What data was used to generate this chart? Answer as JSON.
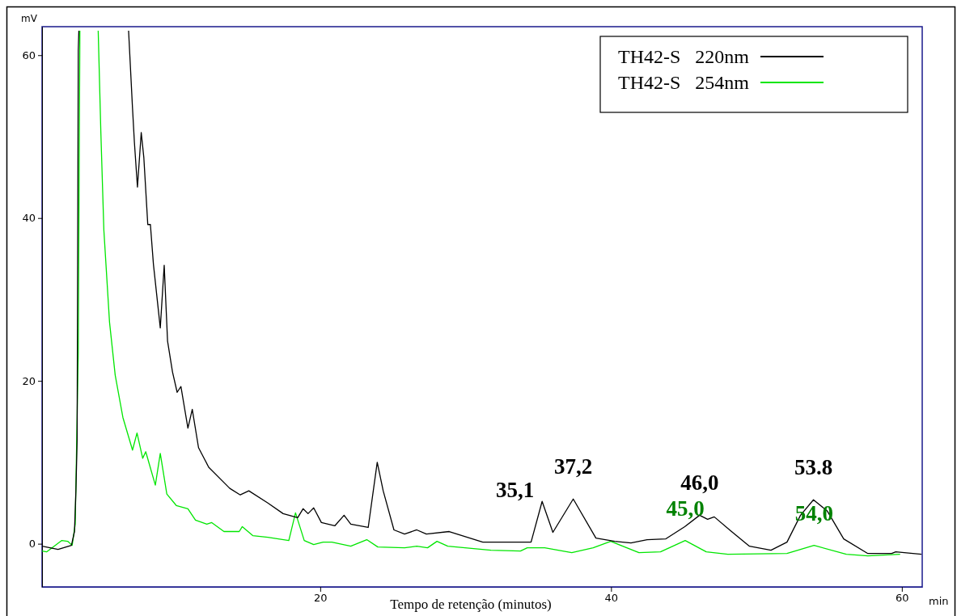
{
  "chart_data": {
    "type": "line",
    "xlabel": "Tempo de retenção (minutos)",
    "ylabel": "mV",
    "xlim": [
      0.87,
      61.4
    ],
    "ylim": [
      -5.3,
      63.5
    ],
    "xticks": [
      20,
      40,
      60
    ],
    "yticks": [
      0,
      20,
      40,
      60
    ],
    "grid": false,
    "legend": "top right",
    "marker": "none",
    "line_style": "solid",
    "series": [
      {
        "name": "TH42-S   220nm",
        "color": "#000000",
        "x": [
          0.87,
          1.97,
          2.89,
          3.1,
          3.2,
          3.28,
          3.36,
          3.4,
          null,
          6.82,
          7.09,
          7.22,
          7.43,
          7.69,
          7.87,
          8.14,
          8.32,
          8.53,
          9.0,
          9.27,
          9.5,
          9.84,
          10.16,
          10.42,
          10.9,
          11.2,
          11.63,
          12.33,
          13.78,
          14.5,
          15.09,
          16.4,
          17.45,
          18.45,
          18.82,
          19.16,
          19.55,
          20.08,
          21.0,
          21.64,
          22.1,
          23.3,
          23.92,
          24.33,
          25.07,
          25.8,
          26.64,
          27.3,
          28.87,
          31.18,
          34.5,
          35.26,
          36.0,
          37.4,
          38.96,
          40.25,
          41.37,
          42.48,
          43.77,
          45.07,
          46.09,
          46.64,
          47.1,
          48.22,
          49.52,
          51.0,
          52.1,
          53.03,
          53.92,
          54.88,
          56.0,
          57.66,
          59.3,
          59.58,
          61.35
        ],
        "values": [
          -0.3,
          -0.7,
          -0.2,
          1.5,
          6.6,
          12.7,
          60.6,
          63.0,
          null,
          63.0,
          53.5,
          49.3,
          43.8,
          50.5,
          47.4,
          39.2,
          39.2,
          34.3,
          26.5,
          34.2,
          24.9,
          21.1,
          18.6,
          19.3,
          14.2,
          16.5,
          11.8,
          9.4,
          6.8,
          6.0,
          6.5,
          5.0,
          3.7,
          3.2,
          4.3,
          3.7,
          4.4,
          2.6,
          2.2,
          3.5,
          2.4,
          2.0,
          10.0,
          6.5,
          1.7,
          1.2,
          1.7,
          1.2,
          1.5,
          0.2,
          0.2,
          5.2,
          1.4,
          5.5,
          0.7,
          0.3,
          0.1,
          0.5,
          0.6,
          2.1,
          3.5,
          3.0,
          3.3,
          1.6,
          -0.3,
          -0.8,
          0.2,
          3.5,
          5.4,
          4.0,
          0.6,
          -1.2,
          -1.2,
          -1.0,
          -1.3
        ]
      },
      {
        "name": "TH42-S   254nm",
        "color": "#00e600",
        "x": [
          0.87,
          1.18,
          2.23,
          2.63,
          2.94,
          3.15,
          3.36,
          3.47,
          null,
          4.73,
          4.91,
          5.12,
          5.51,
          5.9,
          6.43,
          7.09,
          7.4,
          7.79,
          8.0,
          8.66,
          9.0,
          9.45,
          10.1,
          10.9,
          11.42,
          12.2,
          12.54,
          13.38,
          14.43,
          14.64,
          15.36,
          16.4,
          17.84,
          18.3,
          18.9,
          19.55,
          20.2,
          20.8,
          22.1,
          23.2,
          23.96,
          25.8,
          26.64,
          27.38,
          28.03,
          28.77,
          31.74,
          33.77,
          34.24,
          35.44,
          37.3,
          38.77,
          39.98,
          40.25,
          41.92,
          43.4,
          45.1,
          46.55,
          48.03,
          52.1,
          53.96,
          56.18,
          57.66,
          59.88
        ],
        "values": [
          -0.9,
          -1.0,
          0.4,
          0.3,
          -0.2,
          2.4,
          23.5,
          63.0,
          null,
          63.0,
          50.7,
          38.5,
          27.2,
          20.7,
          15.5,
          11.5,
          13.6,
          10.5,
          11.3,
          7.2,
          11.1,
          6.1,
          4.7,
          4.3,
          2.9,
          2.4,
          2.6,
          1.5,
          1.5,
          2.1,
          1.0,
          0.8,
          0.4,
          3.8,
          0.4,
          -0.1,
          0.2,
          0.2,
          -0.3,
          0.5,
          -0.4,
          -0.5,
          -0.3,
          -0.5,
          0.3,
          -0.3,
          -0.8,
          -0.9,
          -0.5,
          -0.5,
          -1.1,
          -0.5,
          0.3,
          0.1,
          -1.1,
          -1.0,
          0.4,
          -1.0,
          -1.3,
          -1.2,
          -0.2,
          -1.3,
          -1.5,
          -1.3
        ]
      }
    ],
    "annotations": [
      {
        "text": "35,1",
        "x": 35.26,
        "y": 5.2
      },
      {
        "text": "37,2",
        "x": 37.4,
        "y": 5.5
      },
      {
        "text": "46,0",
        "x": 46.09,
        "y": 3.5
      },
      {
        "text": "53.8",
        "x": 53.92,
        "y": 5.4
      },
      {
        "text": "45,0",
        "x": 45.1,
        "y": 0.4
      },
      {
        "text": "54,0",
        "x": 53.96,
        "y": -0.2
      },
      "min"
    ]
  }
}
